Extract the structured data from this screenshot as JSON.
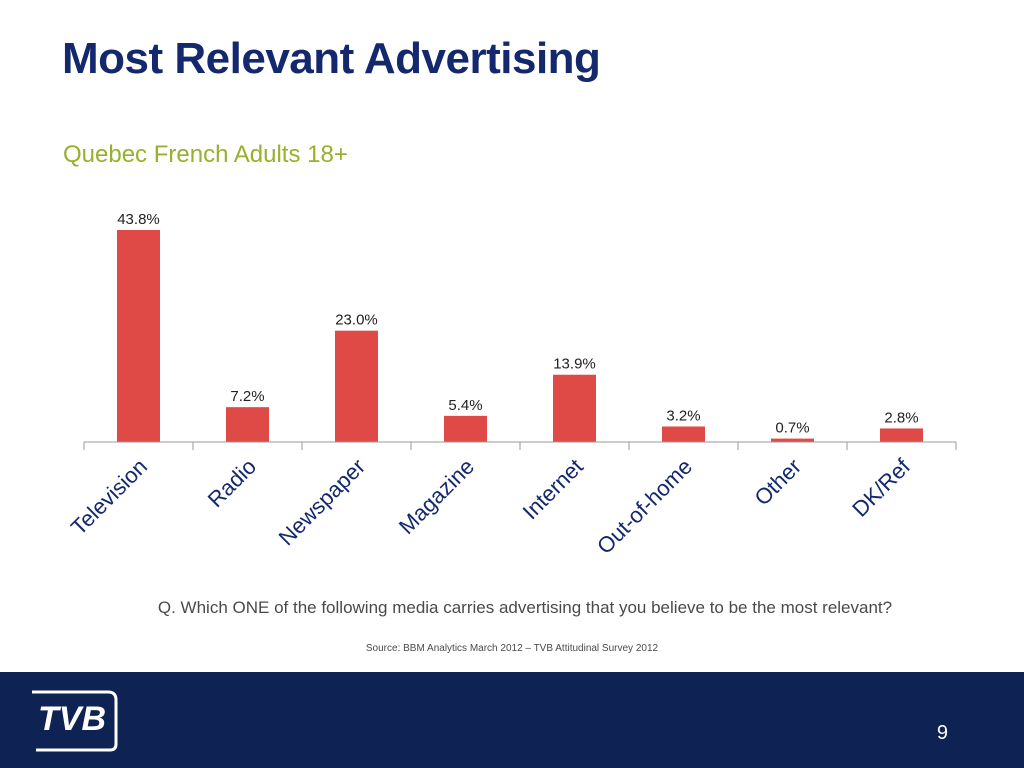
{
  "slide": {
    "title": "Most Relevant Advertising",
    "subtitle": "Quebec French Adults 18+",
    "question": "Q. Which ONE of the following media carries advertising that you believe to be the most relevant?",
    "source": "Source: BBM Analytics March 2012 – TVB Attitudinal Survey 2012",
    "page_number": "9",
    "logo_text": "TVB"
  },
  "colors": {
    "title": "#14286e",
    "subtitle": "#95b12e",
    "bar": "#e04a46",
    "footer": "#0e2253"
  },
  "icons": {
    "logo": "tvb-logo-icon"
  },
  "chart_data": {
    "type": "bar",
    "title": "",
    "xlabel": "",
    "ylabel": "",
    "categories": [
      "Television",
      "Radio",
      "Newspaper",
      "Magazine",
      "Internet",
      "Out-of-home",
      "Other",
      "DK/Ref"
    ],
    "values": [
      43.8,
      7.2,
      23.0,
      5.4,
      13.9,
      3.2,
      0.7,
      2.8
    ],
    "data_labels": [
      "43.8%",
      "7.2%",
      "23.0%",
      "5.4%",
      "13.9%",
      "3.2%",
      "0.7%",
      "2.8%"
    ],
    "ylim": [
      0,
      50
    ],
    "grid": false,
    "legend": "none",
    "x_tick_rotation": -45
  }
}
